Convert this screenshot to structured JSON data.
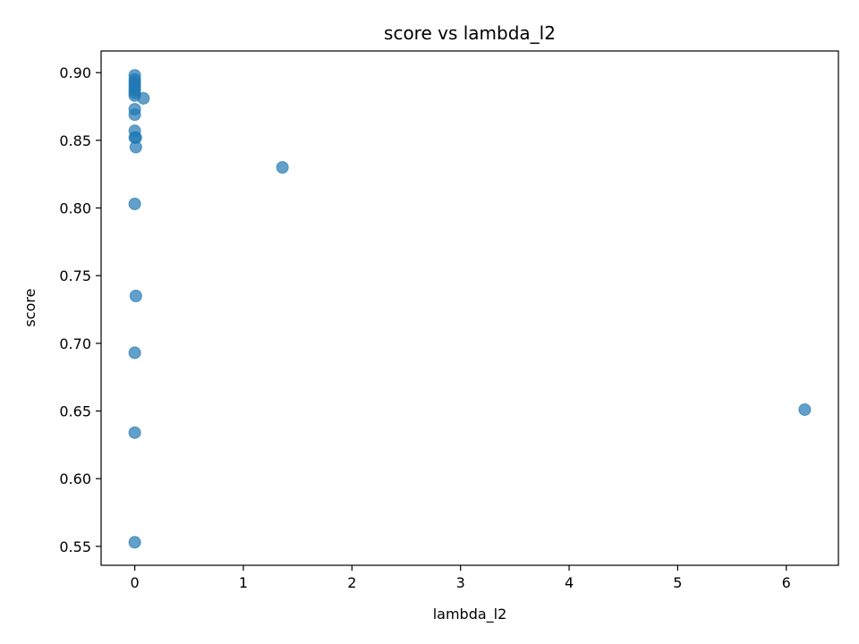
{
  "chart_data": {
    "type": "scatter",
    "title": "score vs lambda_l2",
    "xlabel": "lambda_l2",
    "ylabel": "score",
    "xlim": [
      -0.31,
      6.48
    ],
    "ylim": [
      0.536,
      0.916
    ],
    "xticks": [
      0,
      1,
      2,
      3,
      4,
      5,
      6
    ],
    "yticks": [
      0.55,
      0.6,
      0.65,
      0.7,
      0.75,
      0.8,
      0.85,
      0.9
    ],
    "ytick_labels": [
      "0.55",
      "0.60",
      "0.65",
      "0.70",
      "0.75",
      "0.80",
      "0.85",
      "0.90"
    ],
    "grid": false,
    "legend": "none",
    "marker_color": "#1f77b4",
    "marker_alpha": 0.7,
    "points": [
      {
        "x": 0.0,
        "y": 0.898
      },
      {
        "x": 0.0,
        "y": 0.895
      },
      {
        "x": 0.0,
        "y": 0.893
      },
      {
        "x": 0.0,
        "y": 0.891
      },
      {
        "x": 0.0,
        "y": 0.889
      },
      {
        "x": 0.0,
        "y": 0.887
      },
      {
        "x": 0.0,
        "y": 0.885
      },
      {
        "x": 0.0,
        "y": 0.883
      },
      {
        "x": 0.08,
        "y": 0.881
      },
      {
        "x": 0.0,
        "y": 0.873
      },
      {
        "x": 0.0,
        "y": 0.869
      },
      {
        "x": 0.0,
        "y": 0.857
      },
      {
        "x": 0.0,
        "y": 0.852
      },
      {
        "x": 0.01,
        "y": 0.852
      },
      {
        "x": 0.01,
        "y": 0.845
      },
      {
        "x": 1.36,
        "y": 0.83
      },
      {
        "x": 0.0,
        "y": 0.803
      },
      {
        "x": 0.01,
        "y": 0.735
      },
      {
        "x": 0.0,
        "y": 0.693
      },
      {
        "x": 6.17,
        "y": 0.651
      },
      {
        "x": 0.0,
        "y": 0.634
      },
      {
        "x": 0.0,
        "y": 0.553
      }
    ]
  }
}
